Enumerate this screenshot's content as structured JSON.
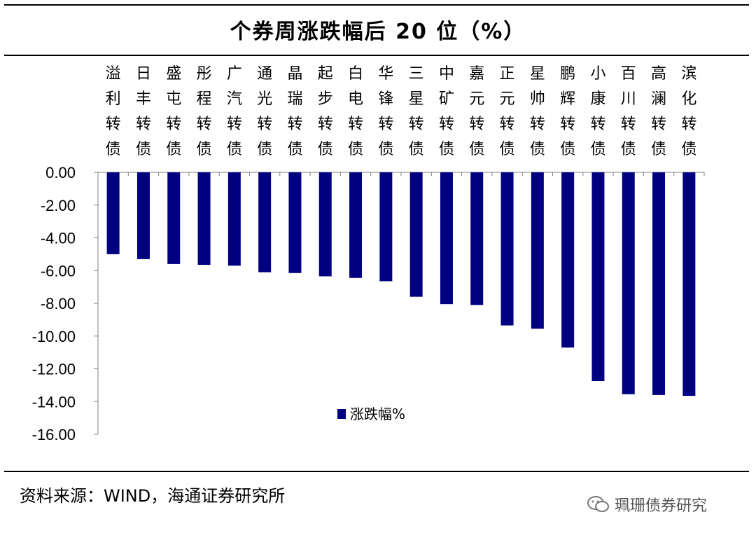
{
  "title": "个券周涨跌幅后 20 位（%）",
  "source": "资料来源：WIND，海通证券研究所",
  "watermark": "珮珊债券研究",
  "colors": {
    "bar": "#000080",
    "axis": "#808080",
    "text": "#000000"
  },
  "chart_data": {
    "type": "bar",
    "title": "个券周涨跌幅后 20 位（%）",
    "categories": [
      "溢利转债",
      "日丰转债",
      "盛屯转债",
      "彤程转债",
      "广汽转债",
      "通光转债",
      "晶瑞转债",
      "起步转债",
      "白电转债",
      "华锋转债",
      "三星转债",
      "中矿转债",
      "嘉元转债",
      "正元转债",
      "星帅转债",
      "鹏辉转债",
      "小康转债",
      "百川转债",
      "高澜转债",
      "滨化转债"
    ],
    "series": [
      {
        "name": "涨跌幅%",
        "values": [
          -5.0,
          -5.3,
          -5.6,
          -5.65,
          -5.7,
          -6.1,
          -6.15,
          -6.35,
          -6.45,
          -6.65,
          -7.6,
          -8.05,
          -8.1,
          -9.35,
          -9.55,
          -10.7,
          -12.75,
          -13.55,
          -13.6,
          -13.65
        ]
      }
    ],
    "yticks": [
      "0.00",
      "-2.00",
      "-4.00",
      "-6.00",
      "-8.00",
      "-10.00",
      "-12.00",
      "-14.00",
      "-16.00"
    ],
    "ylim": [
      -16,
      0
    ],
    "xlabel": "",
    "ylabel": "",
    "legend": "涨跌幅%",
    "legend_position": "bottom-center"
  }
}
